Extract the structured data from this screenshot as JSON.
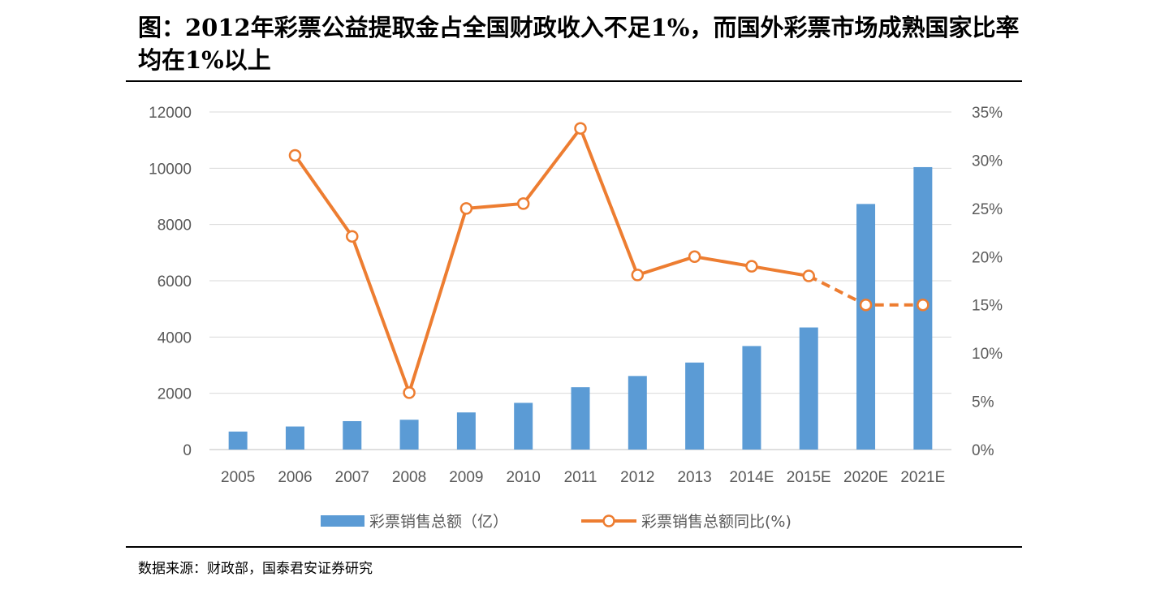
{
  "title": "图：2012年彩票公益提取金占全国财政收入不足1%，而国外彩票市场成熟国家比率均在1%以上",
  "source": "数据来源：财政部，国泰君安证券研究",
  "colors": {
    "bar": "#5b9bd5",
    "line": "#ed7d31",
    "grid": "#d9d9d9",
    "tick": "#595959"
  },
  "chart_data": {
    "type": "bar+line",
    "categories": [
      "2005",
      "2006",
      "2007",
      "2008",
      "2009",
      "2010",
      "2011",
      "2012",
      "2013",
      "2014E",
      "2015E",
      "2020E",
      "2021E"
    ],
    "series": [
      {
        "name": "彩票销售总额（亿）",
        "type": "bar",
        "axis": "left",
        "values": [
          640,
          820,
          1010,
          1060,
          1320,
          1660,
          2216,
          2615,
          3093,
          3680,
          4340,
          8730,
          10040
        ]
      },
      {
        "name": "彩票销售总额同比(%)",
        "type": "line",
        "axis": "right",
        "values": [
          null,
          30.5,
          22.1,
          5.9,
          25.0,
          25.5,
          33.3,
          18.1,
          20.0,
          19.0,
          18.0,
          15.0,
          15.0
        ],
        "dashed_from_category": "2015E"
      }
    ],
    "y_left": {
      "ylim": [
        0,
        12000
      ],
      "ticks": [
        "0",
        "2000",
        "4000",
        "6000",
        "8000",
        "10000",
        "12000"
      ]
    },
    "y_right": {
      "ylim": [
        0,
        35
      ],
      "ticks": [
        "0%",
        "5%",
        "10%",
        "15%",
        "20%",
        "25%",
        "30%",
        "35%"
      ]
    },
    "grid": true,
    "legend_position": "bottom"
  }
}
